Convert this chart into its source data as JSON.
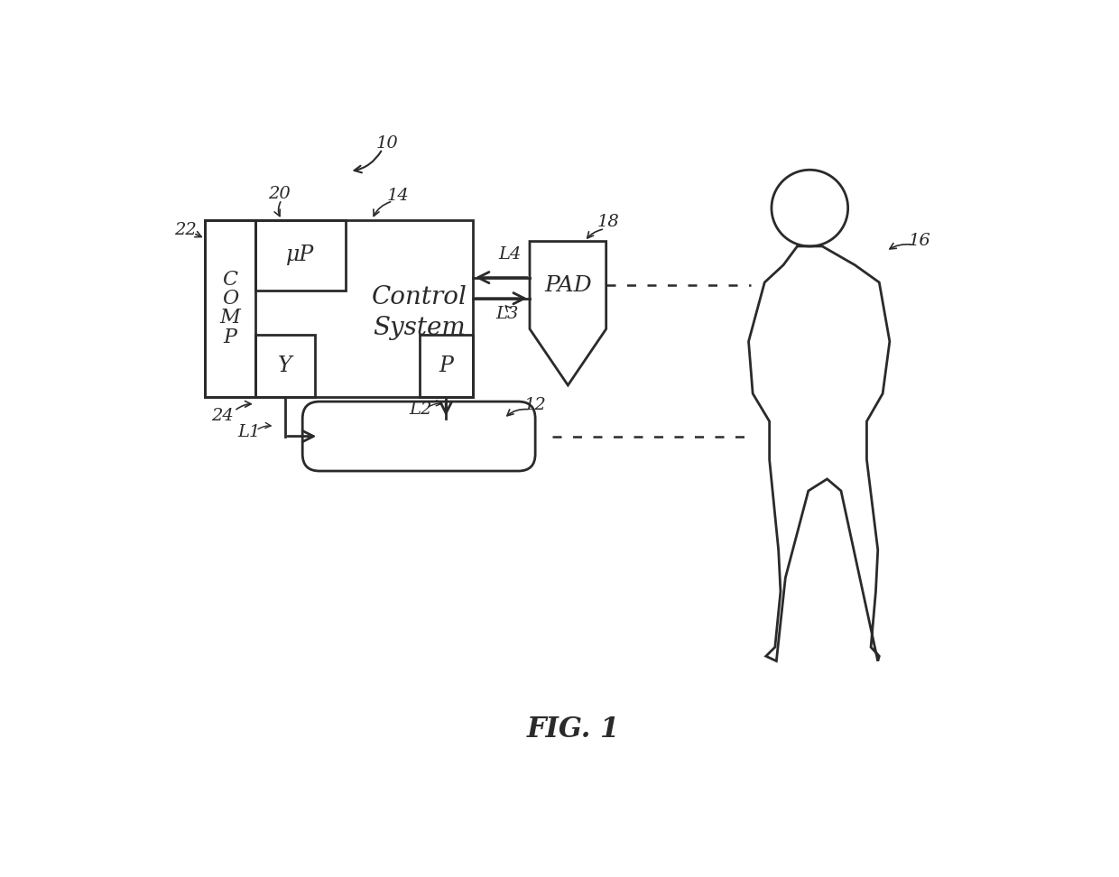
{
  "bg_color": "#ffffff",
  "lc": "#2a2a2a",
  "fig_label": "FIG. 1",
  "ref_10": "10",
  "ref_12": "12",
  "ref_14": "14",
  "ref_16": "16",
  "ref_18": "18",
  "ref_20": "20",
  "ref_22": "22",
  "ref_24": "24",
  "L1": "L1",
  "L2": "L2",
  "L3": "L3",
  "L4": "L4",
  "uP": "μP",
  "Y_label": "Y",
  "P_label": "P",
  "COMP": "C\nO\nM\nP",
  "Control": "Control\nSystem",
  "PAD": "PAD",
  "lw": 2.0
}
